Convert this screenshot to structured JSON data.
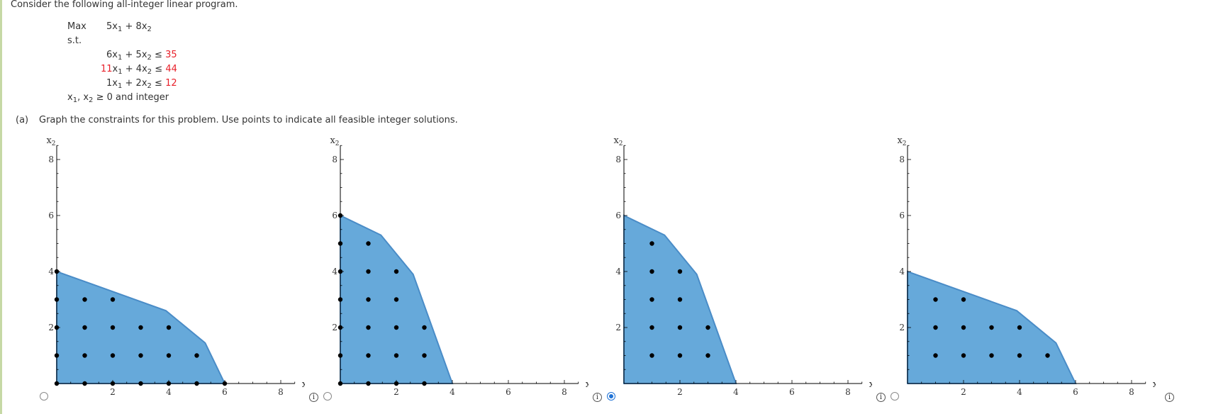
{
  "intro": "Consider the following all-integer linear program.",
  "program": {
    "max_label": "Max",
    "objective": {
      "c1": "5",
      "c2": "8"
    },
    "st_label": "s.t.",
    "constraints": [
      {
        "a1": "6",
        "a2": "5",
        "rhs": "35",
        "a1_red": false
      },
      {
        "a1": "11",
        "a2": "4",
        "rhs": "44",
        "a1_red": true
      },
      {
        "a1": "1",
        "a2": "2",
        "rhs": "12",
        "a1_red": false
      }
    ],
    "nonneg": "≥ 0 and integer"
  },
  "part_a": {
    "label": "(a)",
    "text": "Graph the constraints for this problem. Use points to indicate all feasible integer solutions."
  },
  "axis_labels": {
    "x": "x",
    "y": "x"
  },
  "ticks": {
    "x": [
      2,
      4,
      6,
      8
    ],
    "y": [
      2,
      4,
      6,
      8
    ]
  },
  "colors": {
    "region": "#66a9da",
    "region_stroke": "#4a8cc7",
    "point": "#000000",
    "red": "#e8202a"
  },
  "chart_data": [
    {
      "type": "scatter",
      "xlim": [
        0,
        8.5
      ],
      "ylim": [
        0,
        8.5
      ],
      "region": [
        [
          0,
          0
        ],
        [
          0,
          4
        ],
        [
          3.9,
          2.6
        ],
        [
          5.3,
          1.45
        ],
        [
          6,
          0
        ]
      ],
      "points": [
        [
          0,
          0
        ],
        [
          0,
          1
        ],
        [
          0,
          2
        ],
        [
          0,
          3
        ],
        [
          0,
          4
        ],
        [
          1,
          0
        ],
        [
          1,
          1
        ],
        [
          1,
          2
        ],
        [
          1,
          3
        ],
        [
          2,
          0
        ],
        [
          2,
          1
        ],
        [
          2,
          2
        ],
        [
          2,
          3
        ],
        [
          3,
          0
        ],
        [
          3,
          1
        ],
        [
          3,
          2
        ],
        [
          4,
          0
        ],
        [
          4,
          1
        ],
        [
          4,
          2
        ],
        [
          5,
          0
        ],
        [
          5,
          1
        ],
        [
          6,
          0
        ]
      ],
      "selected": false
    },
    {
      "type": "scatter",
      "xlim": [
        0,
        8.5
      ],
      "ylim": [
        0,
        8.5
      ],
      "region": [
        [
          0,
          0
        ],
        [
          0,
          6
        ],
        [
          1.45,
          5.3
        ],
        [
          2.6,
          3.9
        ],
        [
          4,
          0
        ]
      ],
      "points": [
        [
          0,
          0
        ],
        [
          0,
          1
        ],
        [
          0,
          2
        ],
        [
          0,
          3
        ],
        [
          0,
          4
        ],
        [
          0,
          5
        ],
        [
          0,
          6
        ],
        [
          1,
          0
        ],
        [
          1,
          1
        ],
        [
          1,
          2
        ],
        [
          1,
          3
        ],
        [
          1,
          4
        ],
        [
          1,
          5
        ],
        [
          2,
          0
        ],
        [
          2,
          1
        ],
        [
          2,
          2
        ],
        [
          2,
          3
        ],
        [
          2,
          4
        ],
        [
          3,
          0
        ],
        [
          3,
          1
        ],
        [
          3,
          2
        ]
      ],
      "selected": false
    },
    {
      "type": "scatter",
      "xlim": [
        0,
        8.5
      ],
      "ylim": [
        0,
        8.5
      ],
      "region": [
        [
          0,
          0
        ],
        [
          0,
          6
        ],
        [
          1.45,
          5.3
        ],
        [
          2.6,
          3.9
        ],
        [
          4,
          0
        ]
      ],
      "points": [
        [
          1,
          1
        ],
        [
          1,
          2
        ],
        [
          1,
          3
        ],
        [
          1,
          4
        ],
        [
          1,
          5
        ],
        [
          2,
          1
        ],
        [
          2,
          2
        ],
        [
          2,
          3
        ],
        [
          2,
          4
        ],
        [
          3,
          1
        ],
        [
          3,
          2
        ]
      ],
      "selected": true
    },
    {
      "type": "scatter",
      "xlim": [
        0,
        8.5
      ],
      "ylim": [
        0,
        8.5
      ],
      "region": [
        [
          0,
          0
        ],
        [
          0,
          4
        ],
        [
          3.9,
          2.6
        ],
        [
          5.3,
          1.45
        ],
        [
          6,
          0
        ]
      ],
      "points": [
        [
          1,
          1
        ],
        [
          1,
          2
        ],
        [
          1,
          3
        ],
        [
          2,
          1
        ],
        [
          2,
          2
        ],
        [
          2,
          3
        ],
        [
          3,
          1
        ],
        [
          3,
          2
        ],
        [
          4,
          1
        ],
        [
          4,
          2
        ],
        [
          5,
          1
        ]
      ],
      "selected": false
    }
  ]
}
